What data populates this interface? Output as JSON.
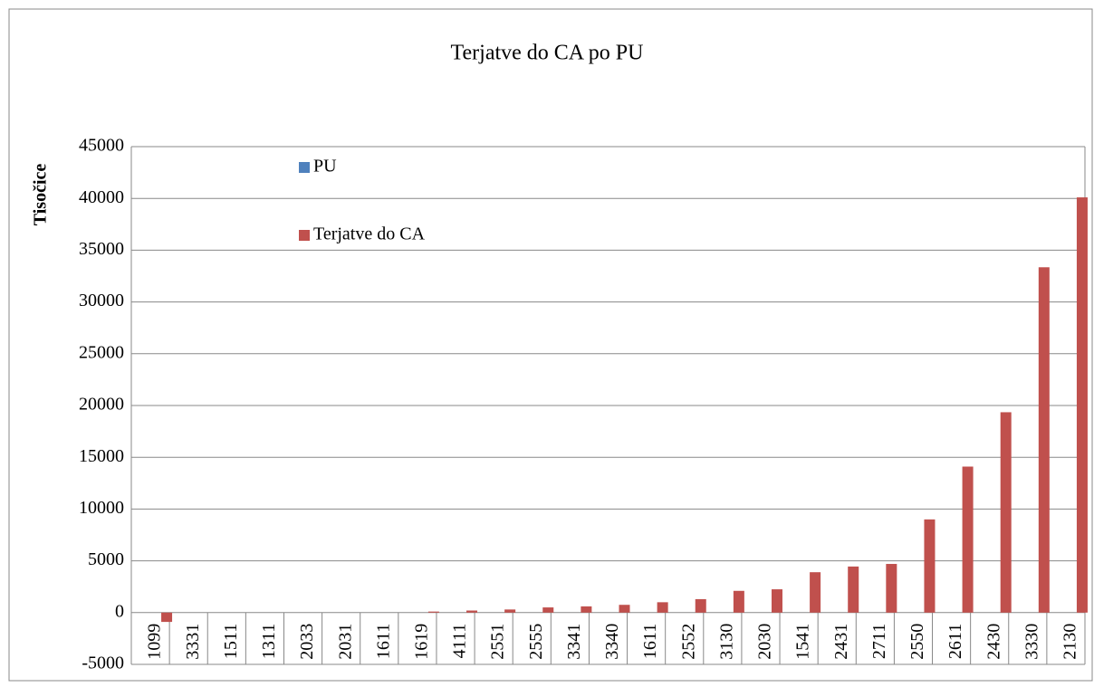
{
  "chart_data": {
    "type": "bar",
    "title": "Terjatve do CA po PU",
    "y_label": "Tisočice",
    "categories": [
      "1099",
      "3331",
      "1511",
      "1311",
      "2033",
      "2031",
      "1611",
      "1619",
      "4111",
      "2551",
      "2555",
      "3341",
      "3340",
      "1611",
      "2552",
      "3130",
      "2030",
      "1541",
      "2431",
      "2711",
      "2550",
      "2611",
      "2430",
      "3330",
      "2130"
    ],
    "series": [
      {
        "name": "PU",
        "color": "#4f81bd",
        "values": [
          null,
          null,
          null,
          null,
          null,
          null,
          null,
          null,
          null,
          null,
          null,
          null,
          null,
          null,
          null,
          null,
          null,
          null,
          null,
          null,
          null,
          null,
          null,
          null,
          null
        ]
      },
      {
        "name": "Terjatve do CA",
        "color": "#c0504d",
        "values": [
          -900,
          0,
          0,
          0,
          0,
          0,
          0,
          100,
          200,
          300,
          500,
          600,
          750,
          1000,
          1300,
          2100,
          2250,
          3900,
          4450,
          4700,
          9000,
          14100,
          19350,
          33350,
          40100
        ]
      }
    ],
    "ylim": [
      -5000,
      45000
    ],
    "yticks": [
      -5000,
      0,
      5000,
      10000,
      15000,
      20000,
      25000,
      30000,
      35000,
      40000,
      45000
    ],
    "grid": true,
    "legend": "top-left"
  }
}
